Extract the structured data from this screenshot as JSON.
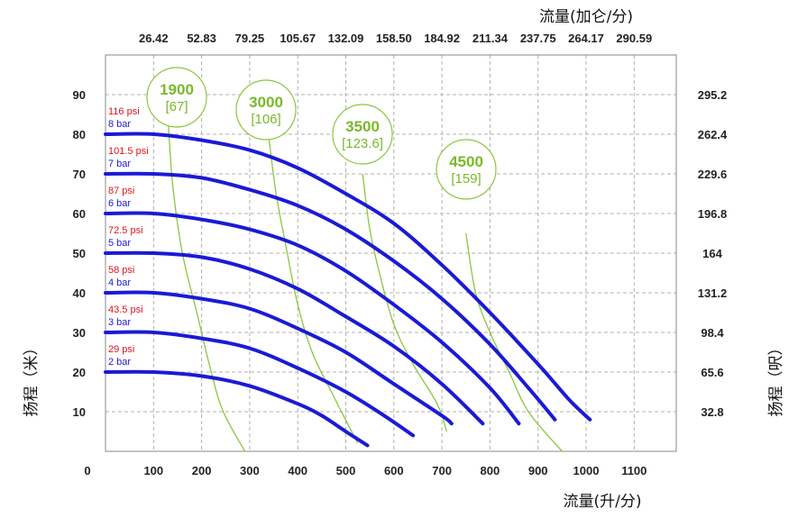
{
  "chart_data": {
    "type": "line",
    "xlabel_bottom": "流量(升/分)",
    "xlabel_top": "流量(加仑/分)",
    "ylabel_left": "扬程（米）",
    "ylabel_right": "扬程（呎）",
    "xlim": [
      0,
      1200
    ],
    "ylim": [
      0,
      100
    ],
    "x_ticks_bottom": [
      0,
      100,
      200,
      300,
      400,
      500,
      600,
      700,
      800,
      900,
      1000,
      1100
    ],
    "x_ticks_top": [
      "26.42",
      "52.83",
      "79.25",
      "105.67",
      "132.09",
      "158.50",
      "184.92",
      "211.34",
      "237.75",
      "264.17",
      "290.59"
    ],
    "y_ticks_left": [
      10,
      20,
      30,
      40,
      50,
      60,
      70,
      80,
      90
    ],
    "y_ticks_right": [
      "32.8",
      "65.6",
      "98.4",
      "131.2",
      "164",
      "196.8",
      "229.6",
      "262.4",
      "295.2"
    ],
    "grid": true,
    "series": [
      {
        "name": "2 bar",
        "psi": "29 psi",
        "points": [
          [
            0,
            20
          ],
          [
            100,
            20
          ],
          [
            200,
            19
          ],
          [
            300,
            16.5
          ],
          [
            400,
            12
          ],
          [
            450,
            9
          ],
          [
            500,
            5
          ],
          [
            545,
            1.5
          ]
        ]
      },
      {
        "name": "3 bar",
        "psi": "43.5 psi",
        "points": [
          [
            0,
            30
          ],
          [
            100,
            30
          ],
          [
            200,
            28.5
          ],
          [
            300,
            26
          ],
          [
            400,
            21
          ],
          [
            500,
            15
          ],
          [
            580,
            9
          ],
          [
            640,
            4
          ]
        ]
      },
      {
        "name": "4 bar",
        "psi": "58 psi",
        "points": [
          [
            0,
            40
          ],
          [
            100,
            40
          ],
          [
            200,
            38.5
          ],
          [
            300,
            36
          ],
          [
            400,
            31
          ],
          [
            500,
            25
          ],
          [
            600,
            17
          ],
          [
            700,
            9
          ],
          [
            720,
            7
          ]
        ]
      },
      {
        "name": "5 bar",
        "psi": "72.5 psi",
        "points": [
          [
            0,
            50
          ],
          [
            100,
            50
          ],
          [
            200,
            49
          ],
          [
            300,
            46
          ],
          [
            400,
            41
          ],
          [
            500,
            34
          ],
          [
            600,
            26.5
          ],
          [
            700,
            17
          ],
          [
            785,
            7
          ]
        ]
      },
      {
        "name": "6 bar",
        "psi": "87 psi",
        "points": [
          [
            0,
            60
          ],
          [
            100,
            60
          ],
          [
            200,
            58.5
          ],
          [
            300,
            56
          ],
          [
            400,
            52
          ],
          [
            500,
            45.5
          ],
          [
            600,
            37
          ],
          [
            700,
            27.5
          ],
          [
            800,
            16
          ],
          [
            860,
            7
          ]
        ]
      },
      {
        "name": "7 bar",
        "psi": "101.5 psi",
        "points": [
          [
            0,
            70
          ],
          [
            100,
            70
          ],
          [
            200,
            69
          ],
          [
            300,
            66
          ],
          [
            400,
            62
          ],
          [
            500,
            56
          ],
          [
            600,
            48
          ],
          [
            700,
            38.5
          ],
          [
            800,
            27
          ],
          [
            880,
            16
          ],
          [
            935,
            8
          ]
        ]
      },
      {
        "name": "8 bar",
        "psi": "116 psi",
        "points": [
          [
            0,
            80
          ],
          [
            100,
            80
          ],
          [
            200,
            78.5
          ],
          [
            300,
            76
          ],
          [
            400,
            71.5
          ],
          [
            500,
            65
          ],
          [
            600,
            57.5
          ],
          [
            700,
            47
          ],
          [
            800,
            35
          ],
          [
            900,
            22
          ],
          [
            965,
            13
          ],
          [
            1008,
            8
          ]
        ]
      }
    ],
    "speed_curves": [
      {
        "label": "1900",
        "gpm": "[67]",
        "points": [
          [
            130,
            84
          ],
          [
            140,
            67
          ],
          [
            160,
            50
          ],
          [
            190,
            35
          ],
          [
            220,
            20
          ],
          [
            245,
            10
          ],
          [
            290,
            0
          ]
        ]
      },
      {
        "label": "3000",
        "gpm": "[106]",
        "points": [
          [
            340,
            79
          ],
          [
            355,
            65
          ],
          [
            375,
            52
          ],
          [
            400,
            37
          ],
          [
            430,
            25
          ],
          [
            470,
            15
          ],
          [
            525,
            2
          ]
        ]
      },
      {
        "label": "3500",
        "gpm": "[123.6]",
        "points": [
          [
            535,
            70
          ],
          [
            550,
            56
          ],
          [
            570,
            45
          ],
          [
            600,
            32
          ],
          [
            640,
            22
          ],
          [
            690,
            12
          ],
          [
            710,
            5
          ]
        ]
      },
      {
        "label": "4500",
        "gpm": "[159]",
        "points": [
          [
            750,
            55
          ],
          [
            770,
            40
          ],
          [
            800,
            30
          ],
          [
            840,
            20
          ],
          [
            880,
            10
          ],
          [
            950,
            0
          ]
        ]
      }
    ]
  }
}
